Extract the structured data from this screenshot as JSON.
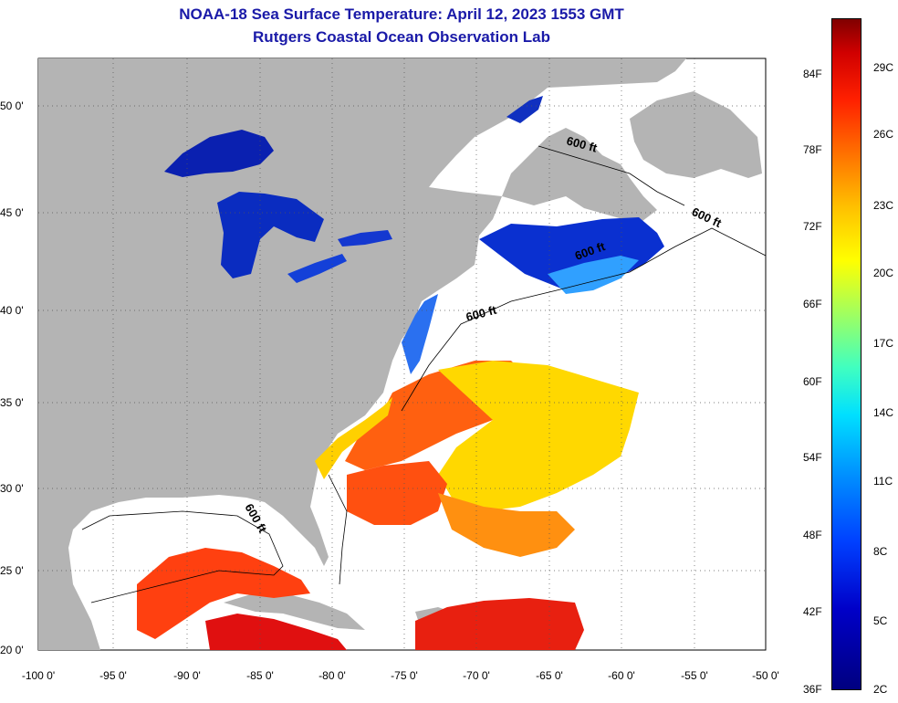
{
  "title": {
    "line1": "NOAA-18 Sea Surface Temperature:  April 12, 2023 1553 GMT",
    "line2": "Rutgers Coastal Ocean Observation Lab"
  },
  "map": {
    "lon_labels": [
      "-100 0'",
      "-95 0'",
      "-90 0'",
      "-85 0'",
      "-80 0'",
      "-75 0'",
      "-70 0'",
      "-65 0'",
      "-60 0'",
      "-55 0'",
      "-50 0'"
    ],
    "lat_labels": [
      "50 0'",
      "45 0'",
      "40 0'",
      "35 0'",
      "30 0'",
      "25 0'",
      "20 0'"
    ],
    "isobath_labels": [
      "600 ft",
      "600 ft",
      "600 ft",
      "600 ft",
      "600 ft"
    ]
  },
  "colorbar": {
    "fahrenheit": [
      "84F",
      "78F",
      "72F",
      "66F",
      "60F",
      "54F",
      "48F",
      "42F",
      "36F"
    ],
    "celsius": [
      "29C",
      "26C",
      "23C",
      "20C",
      "17C",
      "14C",
      "11C",
      "8C",
      "5C",
      "2C"
    ]
  },
  "colors": {
    "title": "#1a1aa8",
    "land": "#b4b4b4",
    "ocean_nodata": "#ffffff"
  }
}
